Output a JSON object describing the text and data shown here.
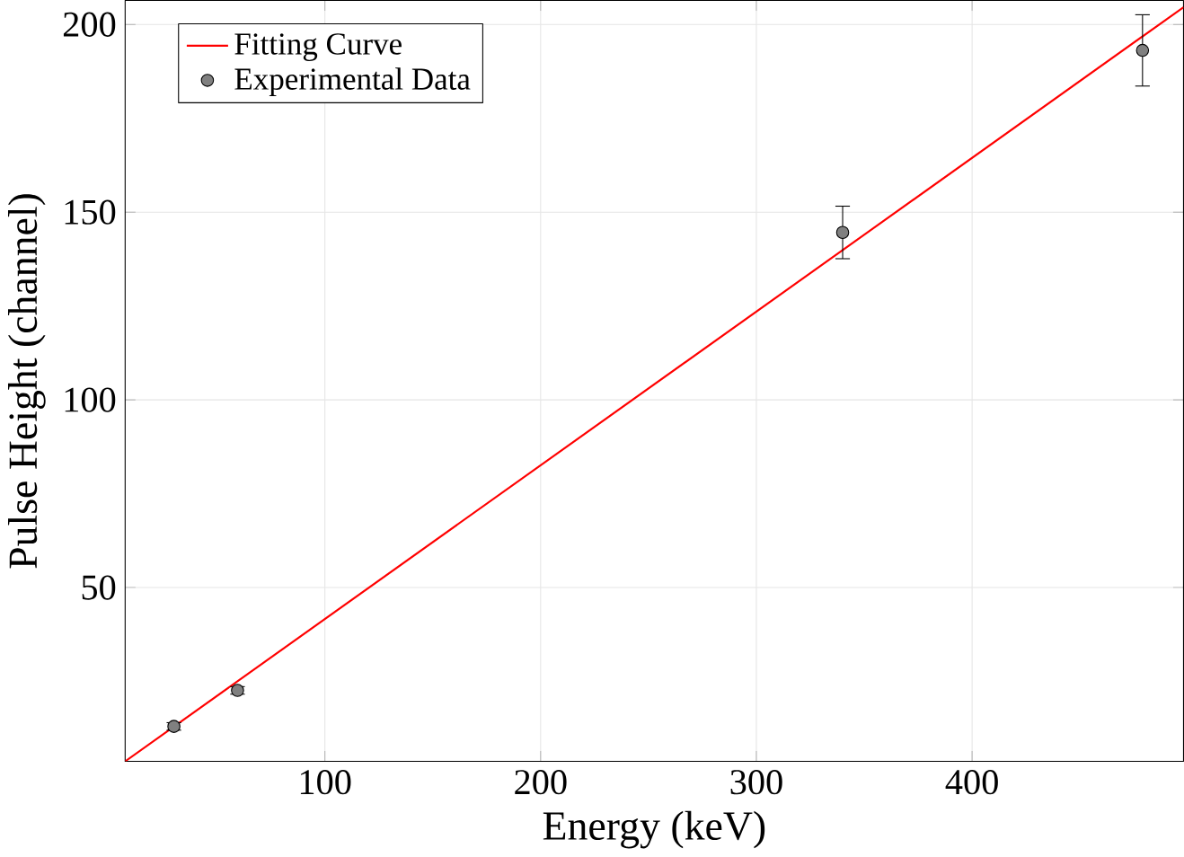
{
  "chart_data": {
    "type": "scatter",
    "xlabel": "Energy (keV)",
    "ylabel": "Pulse Height (channel)",
    "xlim": [
      7.4,
      498
    ],
    "ylim": [
      3.7,
      206.4
    ],
    "xticks": [
      100,
      200,
      300,
      400
    ],
    "yticks": [
      50,
      100,
      150,
      200
    ],
    "grid": true,
    "legend": "top left",
    "series": [
      {
        "name": "Fitting Curve",
        "type": "line",
        "color": "#ff0000",
        "marker": "none",
        "x": [
          7.4,
          498
        ],
        "values": [
          3.7,
          204.6
        ]
      },
      {
        "name": "Experimental Data",
        "color": "#808080",
        "marker": "circle",
        "x": [
          30,
          59.5,
          340,
          479
        ],
        "values": [
          13,
          22.6,
          144.6,
          193.1
        ],
        "errors": [
          1,
          1,
          7,
          9.5
        ]
      }
    ]
  }
}
